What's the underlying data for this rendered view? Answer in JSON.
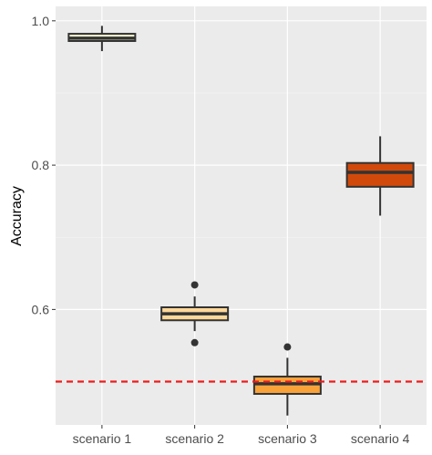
{
  "chart_data": {
    "type": "boxplot",
    "title": "",
    "xlabel": "",
    "ylabel": "Accuracy",
    "ylim": [
      0.44,
      1.02
    ],
    "yticks": [
      0.6,
      0.8,
      1.0
    ],
    "ytick_labels": [
      "0.6",
      "0.8",
      "1.0"
    ],
    "grid": true,
    "legend": "none",
    "reference_line": {
      "y": 0.5,
      "style": "dashed",
      "color": "#ee1c1c"
    },
    "categories": [
      "scenario 1",
      "scenario 2",
      "scenario 3",
      "scenario 4"
    ],
    "boxes": [
      {
        "category": "scenario 1",
        "whisker_low": 0.958,
        "q1": 0.972,
        "median": 0.976,
        "q3": 0.982,
        "whisker_high": 0.993,
        "outliers": [],
        "fill": "#fcfbd2"
      },
      {
        "category": "scenario 2",
        "whisker_low": 0.57,
        "q1": 0.585,
        "median": 0.594,
        "q3": 0.603,
        "whisker_high": 0.618,
        "outliers": [
          0.634,
          0.554
        ],
        "fill": "#fdd89a"
      },
      {
        "category": "scenario 3",
        "whisker_low": 0.453,
        "q1": 0.483,
        "median": 0.497,
        "q3": 0.507,
        "whisker_high": 0.533,
        "outliers": [
          0.548
        ],
        "fill": "#f9a23a"
      },
      {
        "category": "scenario 4",
        "whisker_low": 0.73,
        "q1": 0.77,
        "median": 0.79,
        "q3": 0.803,
        "whisker_high": 0.84,
        "outliers": [],
        "fill": "#d14a0b"
      }
    ]
  },
  "colors": {
    "panel_background": "#ebebeb",
    "grid_major": "#ffffff",
    "grid_minor": "#f5f5f5",
    "box_outline": "#333333"
  }
}
